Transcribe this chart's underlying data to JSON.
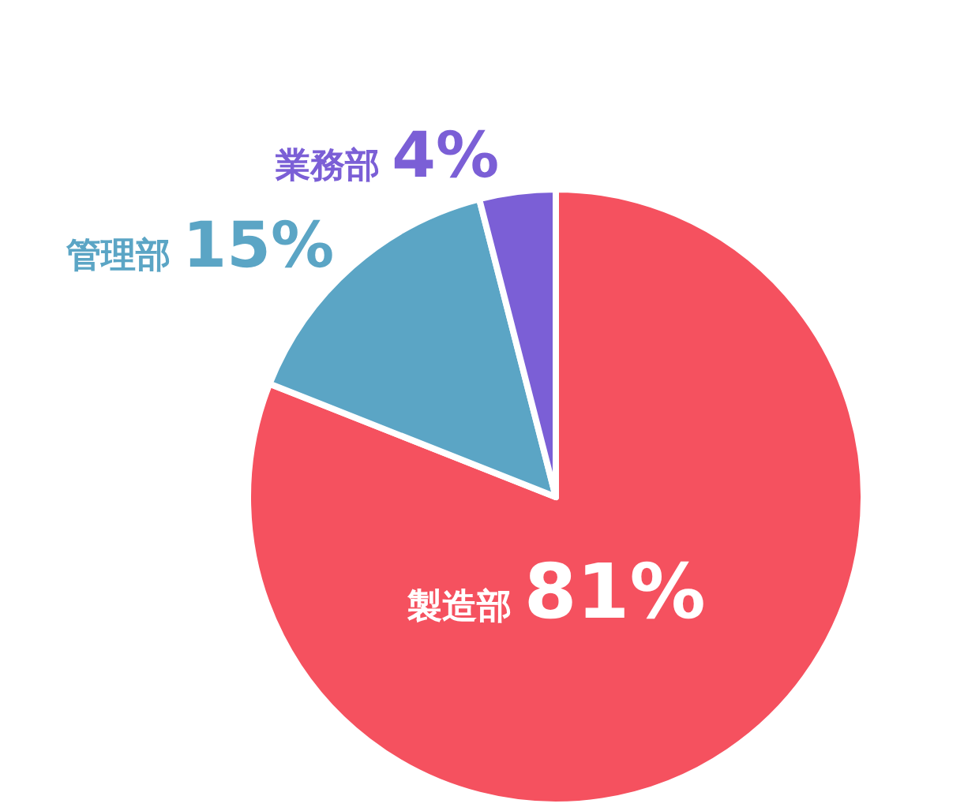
{
  "chart_data": {
    "type": "pie",
    "categories": [
      "製造部",
      "管理部",
      "業務部"
    ],
    "values": [
      81,
      15,
      4
    ],
    "colors": [
      "#f5515f",
      "#5ba5c5",
      "#7b5fd6"
    ],
    "value_labels": [
      "81%",
      "15%",
      "4%"
    ],
    "legend": false
  }
}
